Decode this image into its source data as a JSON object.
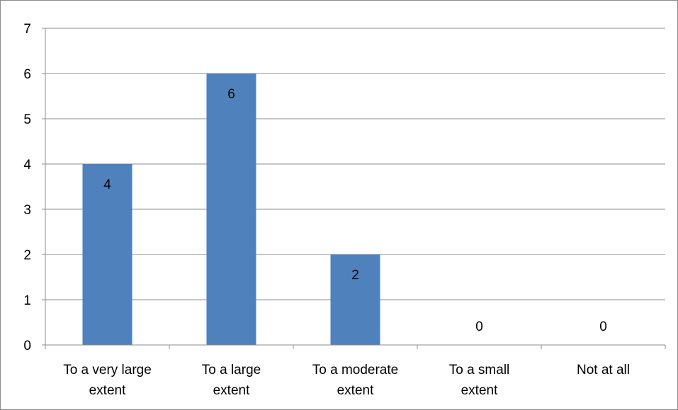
{
  "chart_data": {
    "type": "bar",
    "title": "",
    "xlabel": "",
    "ylabel": "",
    "categories": [
      [
        "To a very large",
        "extent"
      ],
      [
        "To a large",
        "extent"
      ],
      [
        "To a moderate",
        "extent"
      ],
      [
        "To a small",
        "extent"
      ],
      [
        "Not at all"
      ]
    ],
    "values": [
      4,
      6,
      2,
      0,
      0
    ],
    "data_labels": [
      "4",
      "6",
      "2",
      "0",
      "0"
    ],
    "ylim": [
      0,
      7
    ],
    "yticks": [
      "0",
      "1",
      "2",
      "3",
      "4",
      "5",
      "6",
      "7"
    ],
    "grid": true,
    "legend": "none",
    "bar_color": "#4F81BD"
  }
}
